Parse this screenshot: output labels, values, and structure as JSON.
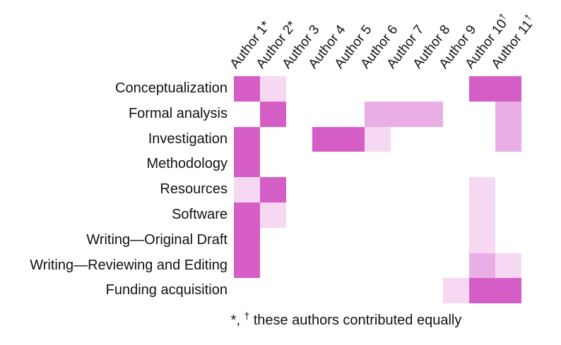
{
  "chart_data": {
    "type": "heatmap",
    "title": "",
    "columns": [
      "Author 1*",
      "Author 2*",
      "Author 3",
      "Author 4",
      "Author 5",
      "Author 6",
      "Author 7",
      "Author 8",
      "Author 9",
      "Author 10†",
      "Author 11†"
    ],
    "rows": [
      "Conceptualization",
      "Formal analysis",
      "Investigation",
      "Methodology",
      "Resources",
      "Software",
      "Writing—Original Draft",
      "Writing—Reviewing and Editing",
      "Funding acquisition"
    ],
    "values": [
      [
        3,
        1,
        0,
        0,
        0,
        0,
        0,
        0,
        0,
        3,
        3
      ],
      [
        0,
        3,
        0,
        0,
        0,
        2,
        2,
        2,
        0,
        0,
        2
      ],
      [
        3,
        0,
        0,
        3,
        3,
        1,
        0,
        0,
        0,
        0,
        2
      ],
      [
        3,
        0,
        0,
        0,
        0,
        0,
        0,
        0,
        0,
        0,
        0
      ],
      [
        1,
        3,
        0,
        0,
        0,
        0,
        0,
        0,
        0,
        1,
        0
      ],
      [
        3,
        1,
        0,
        0,
        0,
        0,
        0,
        0,
        0,
        1,
        0
      ],
      [
        3,
        0,
        0,
        0,
        0,
        0,
        0,
        0,
        0,
        1,
        0
      ],
      [
        3,
        0,
        0,
        0,
        0,
        0,
        0,
        0,
        0,
        2,
        1
      ],
      [
        0,
        0,
        0,
        0,
        0,
        0,
        0,
        0,
        1,
        3,
        3
      ]
    ],
    "value_levels": {
      "0": "none",
      "1": "light",
      "2": "medium",
      "3": "strong"
    },
    "colors": {
      "0": "#ffffff",
      "1": "#f6d8f3",
      "2": "#e9aee6",
      "3": "#d55ec6"
    },
    "grid": "off",
    "legend": "none"
  },
  "footnote": {
    "prefix": "*,",
    "dagger": "†",
    "text": "these authors contributed equally"
  }
}
